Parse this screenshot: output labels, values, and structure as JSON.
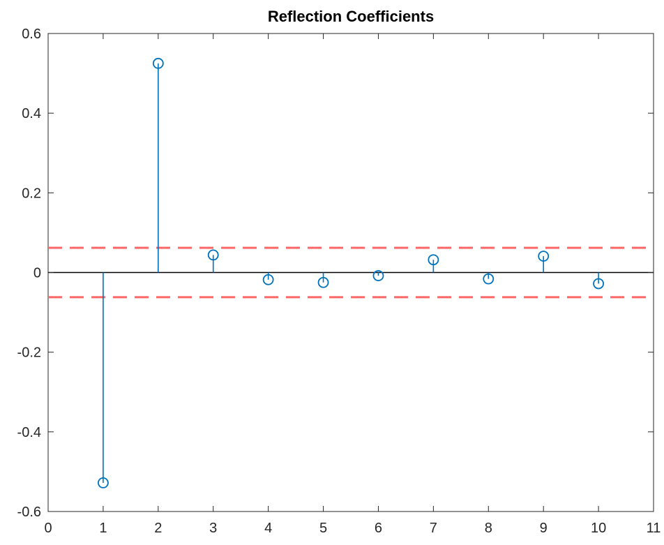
{
  "chart_data": {
    "type": "stem",
    "title": "Reflection Coefficients",
    "xlabel": "",
    "ylabel": "",
    "xlim": [
      0,
      11
    ],
    "ylim": [
      -0.6,
      0.6
    ],
    "xticks": [
      0,
      1,
      2,
      3,
      4,
      5,
      6,
      7,
      8,
      9,
      10,
      11
    ],
    "yticks": [
      -0.6,
      -0.4,
      -0.2,
      0,
      0.2,
      0.4,
      0.6
    ],
    "xtick_labels": [
      "0",
      "1",
      "2",
      "3",
      "4",
      "5",
      "6",
      "7",
      "8",
      "9",
      "10",
      "11"
    ],
    "ytick_labels": [
      "-0.6",
      "-0.4",
      "-0.2",
      "0",
      "0.2",
      "0.4",
      "0.6"
    ],
    "grid": false,
    "box": true,
    "series": [
      {
        "x": [
          1,
          2,
          3,
          4,
          5,
          6,
          7,
          8,
          9,
          10
        ],
        "values": [
          -0.528,
          0.525,
          0.044,
          -0.018,
          -0.025,
          -0.008,
          0.032,
          -0.016,
          0.041,
          -0.028
        ],
        "marker": "circle",
        "color": "#0072BD"
      }
    ],
    "reference_lines": [
      {
        "y": 0.062,
        "style": "dashed",
        "color": "#FF6666"
      },
      {
        "y": -0.062,
        "style": "dashed",
        "color": "#FF6666"
      },
      {
        "y": 0,
        "style": "solid",
        "color": "#000000"
      }
    ]
  }
}
